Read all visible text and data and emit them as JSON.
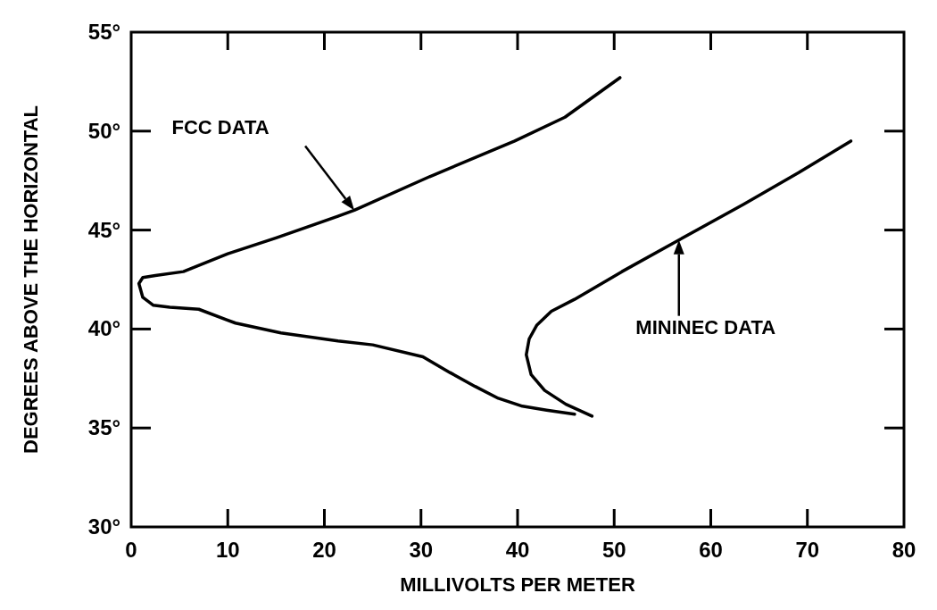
{
  "chart_data": {
    "type": "line",
    "xlabel": "MILLIVOLTS PER METER",
    "ylabel": "DEGREES ABOVE THE HORIZONTAL",
    "xlim": [
      0,
      80
    ],
    "xticks": [
      0,
      10,
      20,
      30,
      40,
      50,
      60,
      70,
      80
    ],
    "ylim": [
      30,
      55
    ],
    "yticks": [
      {
        "value": 30,
        "label": "30°"
      },
      {
        "value": 35,
        "label": "35°"
      },
      {
        "value": 40,
        "label": "40°"
      },
      {
        "value": 45,
        "label": "45°"
      },
      {
        "value": 50,
        "label": "50°"
      },
      {
        "value": 55,
        "label": "55°"
      }
    ],
    "grid": false,
    "marker": "none",
    "line_style": "solid",
    "series": [
      {
        "name": "FCC DATA",
        "color": "#000000",
        "x": [
          50.6,
          44.9,
          39.7,
          30.9,
          23.1,
          21.4,
          15,
          10,
          5.4,
          2.5,
          1.2,
          0.8,
          1.2,
          2.3,
          4,
          7,
          10.8,
          15.5,
          21.4,
          25,
          30.2,
          33,
          35.6,
          38,
          40.5,
          43,
          45.9
        ],
        "values": [
          52.7,
          50.7,
          49.5,
          47.7,
          46.0,
          45.7,
          44.6,
          43.8,
          42.9,
          42.7,
          42.6,
          42.3,
          41.6,
          41.2,
          41.1,
          41.0,
          40.3,
          39.8,
          39.4,
          39.2,
          38.6,
          37.8,
          37.1,
          36.5,
          36.1,
          35.9,
          35.7
        ]
      },
      {
        "name": "MININEC DATA",
        "color": "#000000",
        "x": [
          47.7,
          45,
          42.8,
          41.4,
          40.9,
          41.2,
          42.0,
          43.5,
          45.9,
          50.8,
          56.7,
          63.4,
          69.1,
          74.5
        ],
        "values": [
          35.6,
          36.2,
          36.9,
          37.7,
          38.7,
          39.5,
          40.2,
          40.9,
          41.5,
          42.9,
          44.5,
          46.3,
          47.9,
          49.5
        ]
      }
    ]
  }
}
